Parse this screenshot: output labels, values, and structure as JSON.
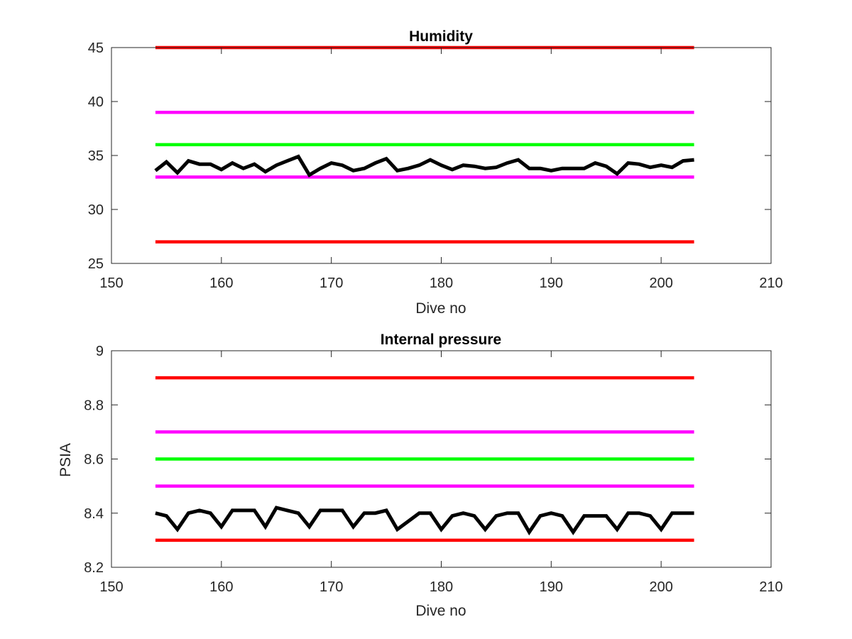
{
  "chart_data": [
    {
      "type": "line",
      "title": "Humidity",
      "xlabel": "Dive no",
      "ylabel": "",
      "xlim": [
        150,
        210
      ],
      "ylim": [
        25,
        45
      ],
      "xticks": [
        "150",
        "160",
        "170",
        "180",
        "190",
        "200",
        "210"
      ],
      "yticks": [
        "25",
        "30",
        "35",
        "40",
        "45"
      ],
      "grid": false,
      "x": [
        154,
        155,
        156,
        157,
        158,
        159,
        160,
        161,
        162,
        163,
        164,
        165,
        166,
        167,
        168,
        169,
        170,
        171,
        172,
        173,
        174,
        175,
        176,
        177,
        178,
        179,
        180,
        181,
        182,
        183,
        184,
        185,
        186,
        187,
        188,
        189,
        190,
        191,
        192,
        193,
        194,
        195,
        196,
        197,
        198,
        199,
        200,
        201,
        202,
        203
      ],
      "series": [
        {
          "color": "#ff0000",
          "x": [
            154,
            203
          ],
          "values": [
            45,
            45
          ]
        },
        {
          "color": "#ff00ff",
          "x": [
            154,
            203
          ],
          "values": [
            39,
            39
          ]
        },
        {
          "color": "#00ff00",
          "x": [
            154,
            203
          ],
          "values": [
            36,
            36
          ]
        },
        {
          "color": "#ff00ff",
          "x": [
            154,
            203
          ],
          "values": [
            33,
            33
          ]
        },
        {
          "color": "#ff0000",
          "x": [
            154,
            203
          ],
          "values": [
            27,
            27
          ]
        },
        {
          "color": "#000000",
          "values": [
            33.6,
            34.4,
            33.4,
            34.5,
            34.2,
            34.2,
            33.7,
            34.3,
            33.8,
            34.2,
            33.5,
            34.1,
            34.5,
            34.9,
            33.2,
            33.8,
            34.3,
            34.1,
            33.6,
            33.8,
            34.3,
            34.7,
            33.6,
            33.8,
            34.1,
            34.6,
            34.1,
            33.7,
            34.1,
            34.0,
            33.8,
            33.9,
            34.3,
            34.6,
            33.8,
            33.8,
            33.6,
            33.8,
            33.8,
            33.8,
            34.3,
            34.0,
            33.3,
            34.3,
            34.2,
            33.9,
            34.1,
            33.9,
            34.5,
            34.6
          ]
        }
      ]
    },
    {
      "type": "line",
      "title": "Internal pressure",
      "xlabel": "Dive no",
      "ylabel": "PSIA",
      "xlim": [
        150,
        210
      ],
      "ylim": [
        8.2,
        9
      ],
      "xticks": [
        "150",
        "160",
        "170",
        "180",
        "190",
        "200",
        "210"
      ],
      "yticks": [
        "8.2",
        "8.4",
        "8.6",
        "8.8",
        "9"
      ],
      "grid": false,
      "x": [
        154,
        155,
        156,
        157,
        158,
        159,
        160,
        161,
        162,
        163,
        164,
        165,
        166,
        167,
        168,
        169,
        170,
        171,
        172,
        173,
        174,
        175,
        176,
        177,
        178,
        179,
        180,
        181,
        182,
        183,
        184,
        185,
        186,
        187,
        188,
        189,
        190,
        191,
        192,
        193,
        194,
        195,
        196,
        197,
        198,
        199,
        200,
        201,
        202,
        203
      ],
      "series": [
        {
          "color": "#ff0000",
          "x": [
            154,
            203
          ],
          "values": [
            8.9,
            8.9
          ]
        },
        {
          "color": "#ff00ff",
          "x": [
            154,
            203
          ],
          "values": [
            8.7,
            8.7
          ]
        },
        {
          "color": "#00ff00",
          "x": [
            154,
            203
          ],
          "values": [
            8.6,
            8.6
          ]
        },
        {
          "color": "#ff00ff",
          "x": [
            154,
            203
          ],
          "values": [
            8.5,
            8.5
          ]
        },
        {
          "color": "#ff0000",
          "x": [
            154,
            203
          ],
          "values": [
            8.3,
            8.3
          ]
        },
        {
          "color": "#000000",
          "values": [
            8.4,
            8.39,
            8.34,
            8.4,
            8.41,
            8.4,
            8.35,
            8.41,
            8.41,
            8.41,
            8.35,
            8.42,
            8.41,
            8.4,
            8.35,
            8.41,
            8.41,
            8.41,
            8.35,
            8.4,
            8.4,
            8.41,
            8.34,
            8.37,
            8.4,
            8.4,
            8.34,
            8.39,
            8.4,
            8.39,
            8.34,
            8.39,
            8.4,
            8.4,
            8.33,
            8.39,
            8.4,
            8.39,
            8.33,
            8.39,
            8.39,
            8.39,
            8.34,
            8.4,
            8.4,
            8.39,
            8.34,
            8.4,
            8.4,
            8.4
          ]
        }
      ]
    }
  ]
}
